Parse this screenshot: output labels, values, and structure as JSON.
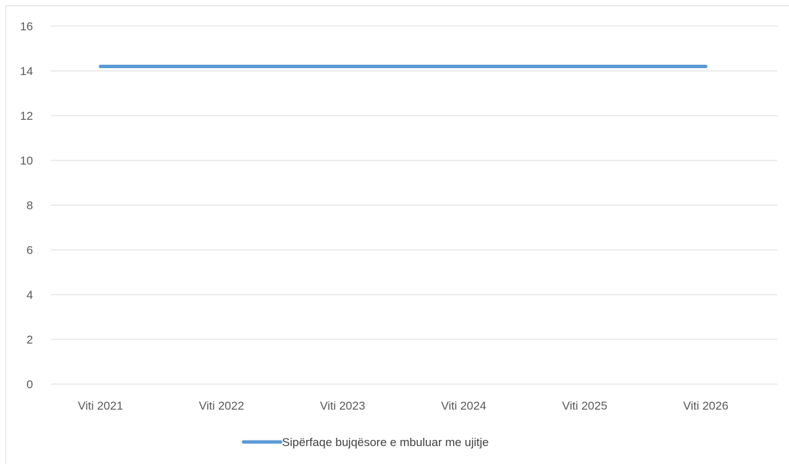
{
  "chart_data": {
    "type": "line",
    "categories": [
      "Viti 2021",
      "Viti 2022",
      "Viti 2023",
      "Viti 2024",
      "Viti 2025",
      "Viti 2026"
    ],
    "series": [
      {
        "name": "Sipërfaqe bujqësore e mbuluar me ujitje",
        "values": [
          14.2,
          14.2,
          14.2,
          14.2,
          14.2,
          14.2
        ],
        "color": "#5b9bd5"
      }
    ],
    "yticks": [
      0,
      2,
      4,
      6,
      8,
      10,
      12,
      14,
      16
    ],
    "ylim": [
      0,
      16
    ],
    "grid": true,
    "legend": "bottom",
    "title": "",
    "xlabel": "",
    "ylabel": ""
  }
}
